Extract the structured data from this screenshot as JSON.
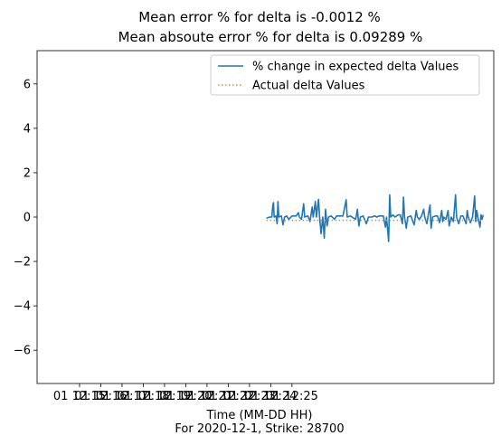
{
  "chart_data": {
    "type": "line",
    "title_line1": "Mean error % for delta is -0.0012 %",
    "title_line2": "Mean absoute error % for delta is 0.09289 %",
    "xlabel": "Time (MM-DD HH)",
    "footnote": "For 2020-12-1, Strike: 28700",
    "ylim": [
      -7.5,
      7.5
    ],
    "yticks": [
      -6,
      -4,
      -2,
      0,
      2,
      4,
      6
    ],
    "ytick_labels": [
      "−6",
      "−4",
      "−2",
      "0",
      "2",
      "4",
      "6"
    ],
    "xlim_minutes": [
      4,
      25.5
    ],
    "xticks_minutes": [
      6,
      7,
      8,
      9,
      10,
      11,
      12,
      13,
      14,
      15,
      16
    ],
    "xtick_labels": [
      "01 12:15",
      "01 12:16",
      "01 12:17",
      "01 12:18",
      "01 12:19",
      "01 12:20",
      "01 12:21",
      "01 12:22",
      "01 12:23",
      "01 12:24",
      "01 12:25"
    ],
    "legend": {
      "placement": "upper-right"
    },
    "series": [
      {
        "name": "% change in expected delta Values",
        "color": "#1f77b4",
        "style": "solid",
        "x_start": 14.8,
        "x_end": 25.0,
        "points": [
          [
            14.8,
            -0.05
          ],
          [
            14.95,
            0.0
          ],
          [
            15.05,
            0.0
          ],
          [
            15.1,
            0.55
          ],
          [
            15.13,
            0.65
          ],
          [
            15.16,
            0.0
          ],
          [
            15.25,
            0.05
          ],
          [
            15.3,
            -0.3
          ],
          [
            15.34,
            0.7
          ],
          [
            15.38,
            0.0
          ],
          [
            15.5,
            0.05
          ],
          [
            15.58,
            -0.35
          ],
          [
            15.65,
            0.0
          ],
          [
            15.75,
            0.05
          ],
          [
            15.85,
            -0.1
          ],
          [
            16.0,
            0.05
          ],
          [
            16.2,
            0.05
          ],
          [
            16.3,
            0.2
          ],
          [
            16.35,
            0.0
          ],
          [
            16.45,
            -0.1
          ],
          [
            16.55,
            0.6
          ],
          [
            16.6,
            0.0
          ],
          [
            16.75,
            0.05
          ],
          [
            16.85,
            -0.2
          ],
          [
            16.95,
            0.45
          ],
          [
            17.0,
            0.0
          ],
          [
            17.1,
            0.7
          ],
          [
            17.15,
            0.0
          ],
          [
            17.25,
            0.8
          ],
          [
            17.3,
            0.0
          ],
          [
            17.37,
            -0.75
          ],
          [
            17.45,
            0.0
          ],
          [
            17.52,
            -0.95
          ],
          [
            17.58,
            0.35
          ],
          [
            17.65,
            -0.4
          ],
          [
            17.72,
            0.0
          ],
          [
            17.85,
            0.05
          ],
          [
            18.0,
            -0.1
          ],
          [
            18.1,
            0.05
          ],
          [
            18.25,
            0.05
          ],
          [
            18.4,
            0.05
          ],
          [
            18.55,
            0.78
          ],
          [
            18.6,
            0.0
          ],
          [
            18.75,
            0.05
          ],
          [
            19.0,
            -0.1
          ],
          [
            19.08,
            0.35
          ],
          [
            19.15,
            -0.4
          ],
          [
            19.22,
            0.0
          ],
          [
            19.35,
            0.05
          ],
          [
            19.5,
            -0.3
          ],
          [
            19.6,
            0.0
          ],
          [
            19.75,
            0.0
          ],
          [
            19.9,
            0.05
          ],
          [
            20.0,
            0.0
          ],
          [
            20.1,
            0.05
          ],
          [
            20.3,
            0.05
          ],
          [
            20.4,
            -0.45
          ],
          [
            20.45,
            0.0
          ],
          [
            20.55,
            -1.1
          ],
          [
            20.6,
            1.0
          ],
          [
            20.65,
            0.0
          ],
          [
            20.75,
            0.1
          ],
          [
            20.85,
            0.0
          ],
          [
            21.0,
            0.1
          ],
          [
            21.1,
            0.1
          ],
          [
            21.2,
            -0.3
          ],
          [
            21.25,
            0.9
          ],
          [
            21.3,
            0.0
          ],
          [
            21.38,
            -0.5
          ],
          [
            21.45,
            0.0
          ],
          [
            21.6,
            0.05
          ],
          [
            21.75,
            -0.35
          ],
          [
            21.85,
            0.3
          ],
          [
            21.9,
            0.0
          ],
          [
            22.0,
            -0.1
          ],
          [
            22.1,
            0.05
          ],
          [
            22.2,
            0.35
          ],
          [
            22.25,
            0.0
          ],
          [
            22.35,
            -0.3
          ],
          [
            22.4,
            0.0
          ],
          [
            22.5,
            0.55
          ],
          [
            22.55,
            -0.5
          ],
          [
            22.62,
            0.0
          ],
          [
            22.75,
            0.05
          ],
          [
            22.85,
            0.05
          ],
          [
            22.95,
            -0.25
          ],
          [
            23.05,
            0.3
          ],
          [
            23.1,
            -0.2
          ],
          [
            23.15,
            0.0
          ],
          [
            23.25,
            -0.1
          ],
          [
            23.35,
            0.3
          ],
          [
            23.4,
            -0.4
          ],
          [
            23.5,
            0.0
          ],
          [
            23.6,
            -0.2
          ],
          [
            23.7,
            1.0
          ],
          [
            23.75,
            0.0
          ],
          [
            23.85,
            -0.3
          ],
          [
            23.95,
            0.05
          ],
          [
            24.05,
            0.05
          ],
          [
            24.2,
            -0.3
          ],
          [
            24.25,
            0.3
          ],
          [
            24.3,
            0.0
          ],
          [
            24.4,
            -0.25
          ],
          [
            24.5,
            0.0
          ],
          [
            24.6,
            0.95
          ],
          [
            24.65,
            -0.2
          ],
          [
            24.7,
            0.3
          ],
          [
            24.75,
            0.0
          ],
          [
            24.85,
            -0.45
          ],
          [
            24.9,
            0.1
          ],
          [
            24.95,
            -0.1
          ],
          [
            25.0,
            0.1
          ]
        ]
      },
      {
        "name": "Actual delta Values",
        "color": "#ff7f0e",
        "style": "dotted",
        "points": [
          [
            14.8,
            -0.15
          ],
          [
            25.0,
            -0.15
          ]
        ]
      }
    ]
  }
}
